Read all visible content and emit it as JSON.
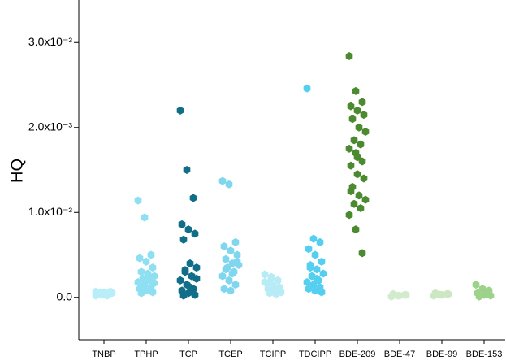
{
  "chart_data": {
    "type": "strip",
    "y_label": "HQ",
    "categories": [
      "TNBP",
      "TPHP",
      "TCP",
      "TCEP",
      "TCIPP",
      "TDCIPP",
      "BDE-209",
      "BDE-47",
      "BDE-99",
      "BDE-153"
    ],
    "colors": [
      "#b9eef9",
      "#8fdff2",
      "#106e88",
      "#7fd6ee",
      "#b7ebf5",
      "#55cff0",
      "#4b8a2e",
      "#d3ebcd",
      "#cce7c2",
      "#9dd28a"
    ],
    "values": [
      [
        2e-05,
        3e-05,
        4e-05,
        5e-05,
        6e-05,
        7e-05,
        4e-05,
        3e-05,
        5e-05,
        6e-05,
        2e-05,
        7e-05
      ],
      [
        0.00114,
        0.00094,
        0.0005,
        0.00046,
        0.00042,
        0.00035,
        0.0003,
        0.00028,
        0.00025,
        0.00022,
        0.0002,
        0.00018,
        0.00015,
        0.00012,
        0.0001,
        8e-05,
        6e-05,
        5e-05,
        0.00022,
        0.00017
      ],
      [
        0.0022,
        0.0015,
        0.00117,
        0.00086,
        0.0008,
        0.00075,
        0.00068,
        0.0004,
        0.00035,
        0.0003,
        0.00025,
        0.0002,
        0.00015,
        0.0001,
        8e-05,
        5e-05,
        3e-05,
        2e-05,
        0.00012,
        0.00022,
        0.00032
      ],
      [
        0.00137,
        0.00133,
        0.00065,
        0.0006,
        0.00055,
        0.0005,
        0.00045,
        0.0004,
        0.00038,
        0.00035,
        0.0003,
        0.00025,
        0.0002,
        0.00015,
        0.0001,
        8e-05,
        0.00042,
        0.00033,
        0.00028
      ],
      [
        0.00027,
        0.00024,
        0.0002,
        0.00017,
        0.00014,
        0.00012,
        0.0001,
        8e-05,
        6e-05,
        5e-05,
        4e-05,
        0.00018,
        0.00022,
        0.00011
      ],
      [
        0.00246,
        0.00069,
        0.00065,
        0.00057,
        0.0005,
        0.00042,
        0.00038,
        0.00033,
        0.00028,
        0.00025,
        0.0002,
        0.00018,
        0.00015,
        0.00012,
        0.0001,
        8e-05,
        6e-05,
        0.00035,
        0.00022
      ],
      [
        0.00284,
        0.00243,
        0.0023,
        0.00225,
        0.0022,
        0.00215,
        0.0021,
        0.002,
        0.00195,
        0.00185,
        0.0018,
        0.00175,
        0.0017,
        0.0016,
        0.00155,
        0.00145,
        0.0014,
        0.0013,
        0.0012,
        0.00115,
        0.0011,
        0.00105,
        0.00097,
        0.0008,
        0.00052,
        0.00125,
        0.00165
      ],
      [
        1e-05,
        2e-05,
        3e-05,
        4e-05,
        2e-05,
        3e-05
      ],
      [
        2e-05,
        3e-05,
        4e-05,
        5e-05,
        3e-05,
        4e-05
      ],
      [
        0.00015,
        0.0001,
        8e-05,
        5e-05,
        3e-05,
        2e-05,
        1e-05,
        4e-05
      ]
    ],
    "ylim": [
      -0.0005,
      0.0035
    ],
    "yticks": [
      {
        "value": 0,
        "label": "0.0"
      },
      {
        "value": 0.001,
        "label": "1.0x10⁻³"
      },
      {
        "value": 0.002,
        "label": "2.0x10⁻³"
      },
      {
        "value": 0.003,
        "label": "3.0x10⁻³"
      }
    ]
  }
}
